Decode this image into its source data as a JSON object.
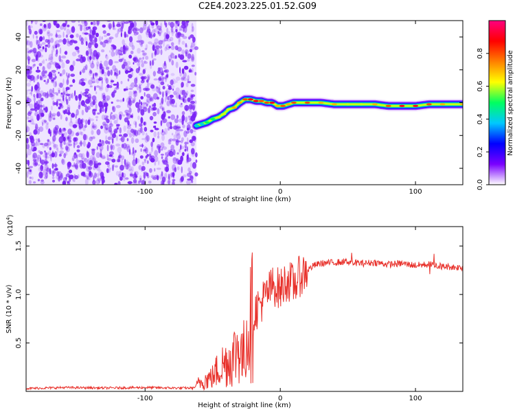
{
  "chart_data": [
    {
      "type": "heatmap",
      "title": "C2E4.2023.225.01.52.G09",
      "xlabel": "Height of straight line (km)",
      "ylabel": "Frequency (Hz)",
      "xlim": [
        -188,
        135
      ],
      "ylim": [
        -50,
        50
      ],
      "x_ticks": [
        -100,
        0,
        100
      ],
      "y_ticks": [
        -40,
        -20,
        0,
        20,
        40
      ],
      "colorbar": {
        "label": "Normalized spectral amplitude",
        "range": [
          0,
          1
        ],
        "ticks": [
          "0.0",
          "0.2",
          "0.4",
          "0.6",
          "0.8"
        ],
        "colors": [
          "#ffffff",
          "#7a00ff",
          "#0000ff",
          "#00c8ff",
          "#00ff60",
          "#ffff00",
          "#ff8000",
          "#ff0000",
          "#ff0080"
        ]
      },
      "noise_region_x": [
        -188,
        -62
      ],
      "noise_color": "#7a22f5",
      "ridge": {
        "x": [
          -62,
          -58,
          -54,
          -50,
          -46,
          -42,
          -38,
          -34,
          -30,
          -26,
          -22,
          -18,
          -14,
          -10,
          -6,
          -2,
          2,
          6,
          10,
          20,
          30,
          40,
          50,
          60,
          70,
          80,
          90,
          100,
          110,
          120,
          135
        ],
        "frequency": [
          -14,
          -13,
          -12,
          -10,
          -9,
          -7,
          -4,
          -3,
          0,
          2,
          2,
          1,
          1,
          0,
          0,
          -2,
          -2,
          -1,
          0,
          0,
          0,
          -1,
          -1,
          -1,
          -1,
          -2,
          -2,
          -2,
          -1,
          -1,
          -1
        ],
        "peak_amplitude": [
          0.4,
          0.4,
          0.5,
          0.5,
          0.6,
          0.6,
          0.6,
          0.7,
          0.7,
          0.8,
          0.9,
          0.9,
          0.8,
          0.8,
          0.9,
          0.7,
          0.8,
          0.7,
          0.8,
          0.8,
          0.7,
          0.7,
          0.6,
          0.6,
          0.7,
          0.8,
          0.9,
          0.9,
          0.8,
          0.7,
          0.7
        ]
      }
    },
    {
      "type": "line",
      "xlabel": "Height of straight line (km)",
      "ylabel": "SNR (10 * v/v)",
      "y_multiplier_label": "(x10",
      "y_multiplier_exp": "4",
      "xlim": [
        -188,
        135
      ],
      "ylim": [
        0,
        17000
      ],
      "x_ticks": [
        -100,
        0,
        100
      ],
      "y_ticks": [
        5000,
        10000,
        15000
      ],
      "y_tick_labels": [
        "0.5",
        "1.0",
        "1.5"
      ],
      "line_color": "#e8302a",
      "series": [
        {
          "x": [
            -188,
            -160,
            -130,
            -100,
            -80,
            -64,
            -60,
            -55,
            -50,
            -45,
            -40,
            -35,
            -30,
            -28,
            -25,
            -20,
            -15,
            -10,
            -5,
            0,
            5,
            10,
            15,
            20,
            25,
            30,
            40,
            50,
            60,
            70,
            80,
            90,
            100,
            110,
            120,
            130,
            135
          ],
          "values": [
            300,
            400,
            350,
            400,
            350,
            350,
            900,
            1200,
            1500,
            2500,
            3000,
            3500,
            5000,
            3000,
            6000,
            8000,
            9000,
            10000,
            11000,
            10500,
            11500,
            11000,
            12000,
            12500,
            13000,
            13200,
            13300,
            13400,
            13200,
            13300,
            13100,
            13200,
            13000,
            13100,
            12900,
            12800,
            12800
          ]
        }
      ]
    }
  ]
}
